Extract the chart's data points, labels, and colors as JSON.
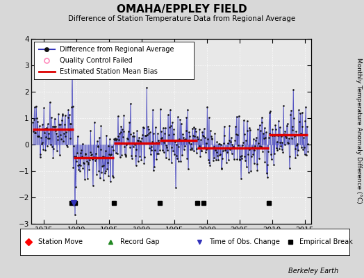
{
  "title": "OMAHA/EPPLEY FIELD",
  "subtitle": "Difference of Station Temperature Data from Regional Average",
  "ylabel": "Monthly Temperature Anomaly Difference (°C)",
  "credit": "Berkeley Earth",
  "xlim": [
    1973.0,
    2016.0
  ],
  "ylim": [
    -3,
    4
  ],
  "yticks": [
    -3,
    -2,
    -1,
    0,
    1,
    2,
    3,
    4
  ],
  "xticks": [
    1975,
    1980,
    1985,
    1990,
    1995,
    2000,
    2005,
    2010,
    2015
  ],
  "bg_color": "#d8d8d8",
  "plot_bg_color": "#e8e8e8",
  "line_color": "#3333bb",
  "dot_color": "#111111",
  "bias_color": "#dd0000",
  "seed": 42,
  "empirical_breaks": [
    1979.25,
    1979.75,
    1985.75,
    1992.75,
    1998.5,
    1999.5,
    2009.5
  ],
  "tobs_changes": [
    1979.5
  ],
  "bias_segments": [
    {
      "xstart": 1973.3,
      "xend": 1979.5,
      "value": 0.58
    },
    {
      "xstart": 1979.5,
      "xend": 1985.75,
      "value": -0.5
    },
    {
      "xstart": 1985.75,
      "xend": 1992.75,
      "value": 0.05
    },
    {
      "xstart": 1992.75,
      "xend": 1998.5,
      "value": 0.15
    },
    {
      "xstart": 1998.5,
      "xend": 2009.5,
      "value": -0.12
    },
    {
      "xstart": 2009.5,
      "xend": 2015.5,
      "value": 0.38
    }
  ],
  "marker_y": -2.2
}
